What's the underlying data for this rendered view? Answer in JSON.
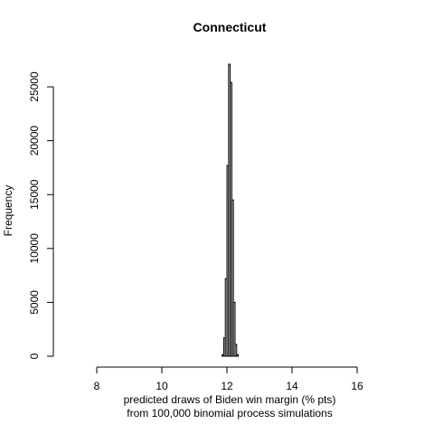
{
  "chart_data": {
    "type": "bar",
    "title": "Connecticut",
    "xlabel_line1": "predicted draws of Biden win margin (% pts)",
    "xlabel_line2": "from 100,000 binomial process simulations",
    "ylabel": "Frequency",
    "xlim": [
      7.2,
      16.0
    ],
    "ylim": [
      0,
      27500
    ],
    "x_ticks": [
      8,
      10,
      12,
      14,
      16
    ],
    "y_ticks": [
      0,
      5000,
      10000,
      15000,
      20000,
      25000
    ],
    "bin_width": 0.05,
    "bins": [
      {
        "x0": 11.85,
        "count": 150
      },
      {
        "x0": 11.9,
        "count": 1700
      },
      {
        "x0": 11.95,
        "count": 7200
      },
      {
        "x0": 12.0,
        "count": 17700
      },
      {
        "x0": 12.05,
        "count": 27100
      },
      {
        "x0": 12.1,
        "count": 25400
      },
      {
        "x0": 12.15,
        "count": 14500
      },
      {
        "x0": 12.2,
        "count": 5000
      },
      {
        "x0": 12.25,
        "count": 1100
      },
      {
        "x0": 12.3,
        "count": 150
      }
    ],
    "grid": false,
    "legend": "none"
  }
}
